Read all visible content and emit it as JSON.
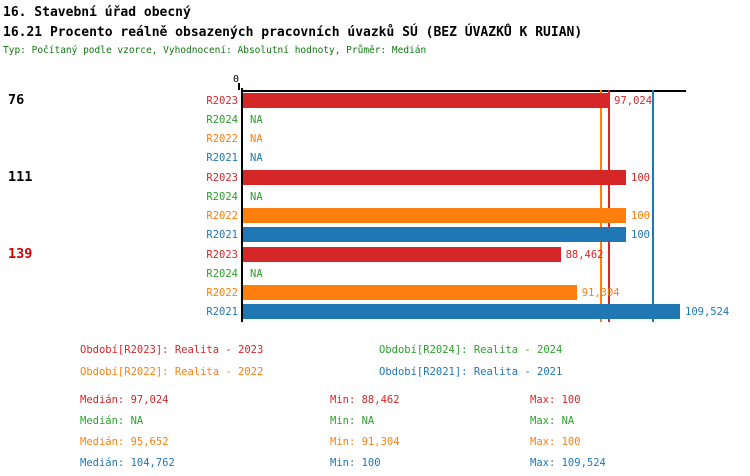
{
  "header": {
    "line1": "16. Stavební úřad obecný",
    "line2": "16.21 Procento reálně obsazených pracovních úvazků SÚ (BEZ ÚVAZKŮ K RUIAN)",
    "line3": "Typ: Počítaný podle vzorce, Vyhodnocení: Absolutní hodnoty, Průměr: Medián"
  },
  "colors": {
    "R2023": "#d62728",
    "R2024": "#2ca02c",
    "R2022": "#ff7f0e",
    "R2021": "#1f77b4",
    "axis": "#000000",
    "group_label": "#000000",
    "group_label_alert": "#d40000",
    "meta_text": "#117711"
  },
  "chart_data": {
    "type": "bar",
    "orientation": "horizontal",
    "unit": "percent",
    "value_axis_origin_label": "0",
    "na_text": "NA",
    "series": [
      {
        "id": "R2023",
        "label": "R2023",
        "color": "#d62728",
        "median": 97.024
      },
      {
        "id": "R2024",
        "label": "R2024",
        "color": "#2ca02c",
        "median": null
      },
      {
        "id": "R2022",
        "label": "R2022",
        "color": "#ff7f0e",
        "median": 95.652
      },
      {
        "id": "R2021",
        "label": "R2021",
        "color": "#1f77b4",
        "median": 104.762
      }
    ],
    "groups": [
      {
        "label": "76",
        "label_alert": false,
        "values": [
          {
            "series": "R2023",
            "value": 97.024,
            "display": "97,024"
          },
          {
            "series": "R2024",
            "value": null,
            "display": "NA"
          },
          {
            "series": "R2022",
            "value": null,
            "display": "NA"
          },
          {
            "series": "R2021",
            "value": null,
            "display": "NA"
          }
        ]
      },
      {
        "label": "111",
        "label_alert": false,
        "values": [
          {
            "series": "R2023",
            "value": 100,
            "display": "100"
          },
          {
            "series": "R2024",
            "value": null,
            "display": "NA"
          },
          {
            "series": "R2022",
            "value": 100,
            "display": "100"
          },
          {
            "series": "R2021",
            "value": 100,
            "display": "100"
          }
        ]
      },
      {
        "label": "139",
        "label_alert": true,
        "values": [
          {
            "series": "R2023",
            "value": 88.462,
            "display": "88,462"
          },
          {
            "series": "R2024",
            "value": null,
            "display": "NA"
          },
          {
            "series": "R2022",
            "value": 91.304,
            "display": "91,304"
          },
          {
            "series": "R2021",
            "value": 109.524,
            "display": "109,524"
          }
        ]
      }
    ],
    "medians": [
      {
        "series": "R2023",
        "value": 97.024
      },
      {
        "series": "R2022",
        "value": 95.652
      },
      {
        "series": "R2021",
        "value": 104.762
      }
    ]
  },
  "legend": {
    "items": [
      {
        "series": "R2023",
        "text": "Období[R2023]: Realita - 2023"
      },
      {
        "series": "R2024",
        "text": "Období[R2024]: Realita - 2024"
      },
      {
        "series": "R2022",
        "text": "Období[R2022]: Realita - 2022"
      },
      {
        "series": "R2021",
        "text": "Období[R2021]: Realita - 2021"
      }
    ]
  },
  "stats": {
    "rows": [
      {
        "series": "R2023",
        "median": "Medián: 97,024",
        "min": "Min: 88,462",
        "max": "Max: 100"
      },
      {
        "series": "R2024",
        "median": "Medián: NA",
        "min": "Min: NA",
        "max": "Max: NA"
      },
      {
        "series": "R2022",
        "median": "Medián: 95,652",
        "min": "Min: 91,304",
        "max": "Max: 100"
      },
      {
        "series": "R2021",
        "median": "Medián: 104,762",
        "min": "Min: 100",
        "max": "Max: 109,524"
      }
    ]
  }
}
